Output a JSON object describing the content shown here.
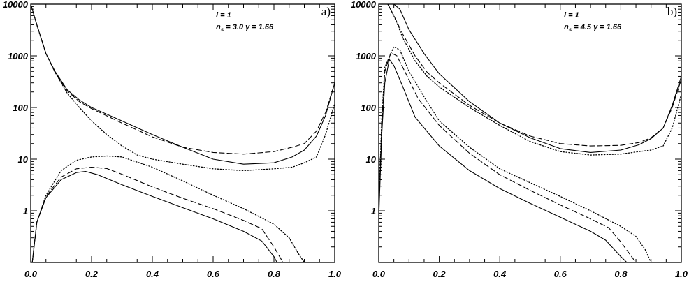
{
  "chart_data": [
    {
      "type": "line",
      "panel_label": "a)",
      "annotation_line1": "l = 1",
      "annotation_line2_prefix": "n",
      "annotation_line2_sub": "s",
      "annotation_line2_rest": " = 3.0 γ = 1.66",
      "xlim": [
        0.0,
        1.0
      ],
      "ylim": [
        0.1,
        10000
      ],
      "yscale": "log",
      "x_ticks": [
        "0.0",
        "0.2",
        "0.4",
        "0.6",
        "0.8",
        "1.0"
      ],
      "y_ticks": [
        "1",
        "10",
        "100",
        "1000",
        "10000"
      ],
      "grid": false,
      "series": [
        {
          "style": "solid",
          "points": [
            [
              0.0,
              10000
            ],
            [
              0.02,
              4000
            ],
            [
              0.05,
              1100
            ],
            [
              0.08,
              500
            ],
            [
              0.12,
              220
            ],
            [
              0.16,
              140
            ],
            [
              0.2,
              100
            ],
            [
              0.3,
              55
            ],
            [
              0.4,
              30
            ],
            [
              0.5,
              17
            ],
            [
              0.6,
              10
            ],
            [
              0.7,
              8
            ],
            [
              0.8,
              8.5
            ],
            [
              0.86,
              11
            ],
            [
              0.9,
              15
            ],
            [
              0.94,
              28
            ],
            [
              0.97,
              70
            ],
            [
              1.0,
              300
            ]
          ]
        },
        {
          "style": "dashed",
          "points": [
            [
              0.0,
              10000
            ],
            [
              0.02,
              4000
            ],
            [
              0.05,
              1100
            ],
            [
              0.08,
              480
            ],
            [
              0.12,
              210
            ],
            [
              0.16,
              130
            ],
            [
              0.2,
              95
            ],
            [
              0.3,
              50
            ],
            [
              0.4,
              27
            ],
            [
              0.5,
              17
            ],
            [
              0.6,
              13.5
            ],
            [
              0.7,
              12.5
            ],
            [
              0.8,
              14
            ],
            [
              0.86,
              17
            ],
            [
              0.9,
              20
            ],
            [
              0.94,
              35
            ],
            [
              0.97,
              80
            ],
            [
              1.0,
              300
            ]
          ]
        },
        {
          "style": "dotted",
          "points": [
            [
              0.0,
              10000
            ],
            [
              0.02,
              4000
            ],
            [
              0.05,
              1100
            ],
            [
              0.08,
              480
            ],
            [
              0.12,
              190
            ],
            [
              0.16,
              100
            ],
            [
              0.2,
              55
            ],
            [
              0.25,
              30
            ],
            [
              0.3,
              18
            ],
            [
              0.35,
              12
            ],
            [
              0.4,
              10
            ],
            [
              0.5,
              8
            ],
            [
              0.6,
              6.5
            ],
            [
              0.7,
              6
            ],
            [
              0.8,
              6.5
            ],
            [
              0.86,
              7
            ],
            [
              0.9,
              8.5
            ],
            [
              0.94,
              11
            ],
            [
              0.97,
              30
            ],
            [
              1.0,
              120
            ]
          ]
        },
        {
          "style": "solid",
          "points": [
            [
              0.005,
              0.1
            ],
            [
              0.02,
              0.6
            ],
            [
              0.05,
              1.8
            ],
            [
              0.1,
              4
            ],
            [
              0.15,
              5.5
            ],
            [
              0.18,
              5.8
            ],
            [
              0.22,
              5
            ],
            [
              0.3,
              3.2
            ],
            [
              0.4,
              1.9
            ],
            [
              0.5,
              1.15
            ],
            [
              0.6,
              0.7
            ],
            [
              0.7,
              0.4
            ],
            [
              0.76,
              0.26
            ],
            [
              0.8,
              0.13
            ],
            [
              0.81,
              0.1
            ]
          ]
        },
        {
          "style": "dashed",
          "points": [
            [
              0.005,
              0.1
            ],
            [
              0.02,
              0.6
            ],
            [
              0.05,
              1.9
            ],
            [
              0.1,
              4.5
            ],
            [
              0.15,
              6.5
            ],
            [
              0.2,
              7
            ],
            [
              0.25,
              6.6
            ],
            [
              0.3,
              5.1
            ],
            [
              0.4,
              2.9
            ],
            [
              0.5,
              1.75
            ],
            [
              0.6,
              1.1
            ],
            [
              0.7,
              0.65
            ],
            [
              0.76,
              0.45
            ],
            [
              0.8,
              0.2
            ],
            [
              0.83,
              0.1
            ]
          ]
        },
        {
          "style": "dotted",
          "points": [
            [
              0.005,
              0.1
            ],
            [
              0.02,
              0.6
            ],
            [
              0.05,
              2
            ],
            [
              0.1,
              6
            ],
            [
              0.15,
              9.5
            ],
            [
              0.2,
              11
            ],
            [
              0.25,
              11.5
            ],
            [
              0.3,
              11
            ],
            [
              0.4,
              7
            ],
            [
              0.5,
              3.8
            ],
            [
              0.6,
              2
            ],
            [
              0.7,
              1.1
            ],
            [
              0.8,
              0.55
            ],
            [
              0.85,
              0.3
            ],
            [
              0.88,
              0.15
            ],
            [
              0.9,
              0.1
            ]
          ]
        }
      ]
    },
    {
      "type": "line",
      "panel_label": "b)",
      "annotation_line1": "l = 1",
      "annotation_line2_prefix": "n",
      "annotation_line2_sub": "s",
      "annotation_line2_rest": " = 4.5 γ = 1.66",
      "xlim": [
        0.0,
        1.0
      ],
      "ylim": [
        0.1,
        10000
      ],
      "yscale": "log",
      "x_ticks": [
        "0.0",
        "0.2",
        "0.4",
        "0.6",
        "0.8",
        "1.0"
      ],
      "y_ticks": [
        "1",
        "10",
        "100",
        "1000",
        "10000"
      ],
      "grid": false,
      "series": [
        {
          "style": "solid",
          "points": [
            [
              0.05,
              10000
            ],
            [
              0.07,
              8000
            ],
            [
              0.1,
              3200
            ],
            [
              0.15,
              1100
            ],
            [
              0.2,
              450
            ],
            [
              0.3,
              130
            ],
            [
              0.4,
              50
            ],
            [
              0.5,
              26
            ],
            [
              0.6,
              16
            ],
            [
              0.7,
              13.5
            ],
            [
              0.8,
              15
            ],
            [
              0.86,
              19
            ],
            [
              0.9,
              25
            ],
            [
              0.94,
              40
            ],
            [
              0.97,
              110
            ],
            [
              1.0,
              400
            ]
          ]
        },
        {
          "style": "dashed",
          "points": [
            [
              0.03,
              10000
            ],
            [
              0.05,
              6000
            ],
            [
              0.08,
              2600
            ],
            [
              0.12,
              1000
            ],
            [
              0.16,
              480
            ],
            [
              0.2,
              300
            ],
            [
              0.3,
              110
            ],
            [
              0.4,
              50
            ],
            [
              0.5,
              28
            ],
            [
              0.6,
              20
            ],
            [
              0.7,
              18
            ],
            [
              0.8,
              18.5
            ],
            [
              0.86,
              21
            ],
            [
              0.9,
              26
            ],
            [
              0.94,
              40
            ],
            [
              0.97,
              100
            ],
            [
              1.0,
              350
            ]
          ]
        },
        {
          "style": "dotted",
          "points": [
            [
              0.03,
              10000
            ],
            [
              0.05,
              6000
            ],
            [
              0.08,
              2200
            ],
            [
              0.12,
              800
            ],
            [
              0.16,
              400
            ],
            [
              0.2,
              250
            ],
            [
              0.3,
              100
            ],
            [
              0.4,
              45
            ],
            [
              0.5,
              22
            ],
            [
              0.6,
              14
            ],
            [
              0.7,
              12
            ],
            [
              0.8,
              12.5
            ],
            [
              0.86,
              14
            ],
            [
              0.9,
              15
            ],
            [
              0.94,
              18
            ],
            [
              0.97,
              40
            ],
            [
              1.0,
              180
            ]
          ]
        },
        {
          "style": "solid",
          "points": [
            [
              0.0,
              0.7
            ],
            [
              0.01,
              30
            ],
            [
              0.02,
              300
            ],
            [
              0.035,
              850
            ],
            [
              0.05,
              650
            ],
            [
              0.08,
              250
            ],
            [
              0.12,
              65
            ],
            [
              0.2,
              18
            ],
            [
              0.3,
              6
            ],
            [
              0.4,
              2.7
            ],
            [
              0.5,
              1.4
            ],
            [
              0.6,
              0.75
            ],
            [
              0.7,
              0.4
            ],
            [
              0.75,
              0.27
            ],
            [
              0.8,
              0.13
            ],
            [
              0.82,
              0.1
            ]
          ]
        },
        {
          "style": "dashed",
          "points": [
            [
              0.0,
              1.0
            ],
            [
              0.01,
              50
            ],
            [
              0.02,
              500
            ],
            [
              0.04,
              1150
            ],
            [
              0.06,
              1000
            ],
            [
              0.09,
              450
            ],
            [
              0.13,
              150
            ],
            [
              0.2,
              45
            ],
            [
              0.3,
              13
            ],
            [
              0.4,
              5
            ],
            [
              0.5,
              2.5
            ],
            [
              0.6,
              1.3
            ],
            [
              0.7,
              0.7
            ],
            [
              0.76,
              0.47
            ],
            [
              0.8,
              0.25
            ],
            [
              0.85,
              0.1
            ]
          ]
        },
        {
          "style": "dotted",
          "points": [
            [
              0.0,
              1.2
            ],
            [
              0.01,
              60
            ],
            [
              0.02,
              600
            ],
            [
              0.05,
              1500
            ],
            [
              0.07,
              1300
            ],
            [
              0.1,
              500
            ],
            [
              0.15,
              160
            ],
            [
              0.2,
              55
            ],
            [
              0.3,
              17
            ],
            [
              0.4,
              6.5
            ],
            [
              0.5,
              3.5
            ],
            [
              0.6,
              1.9
            ],
            [
              0.7,
              1.0
            ],
            [
              0.8,
              0.5
            ],
            [
              0.85,
              0.32
            ],
            [
              0.88,
              0.18
            ],
            [
              0.9,
              0.1
            ]
          ]
        }
      ]
    }
  ]
}
